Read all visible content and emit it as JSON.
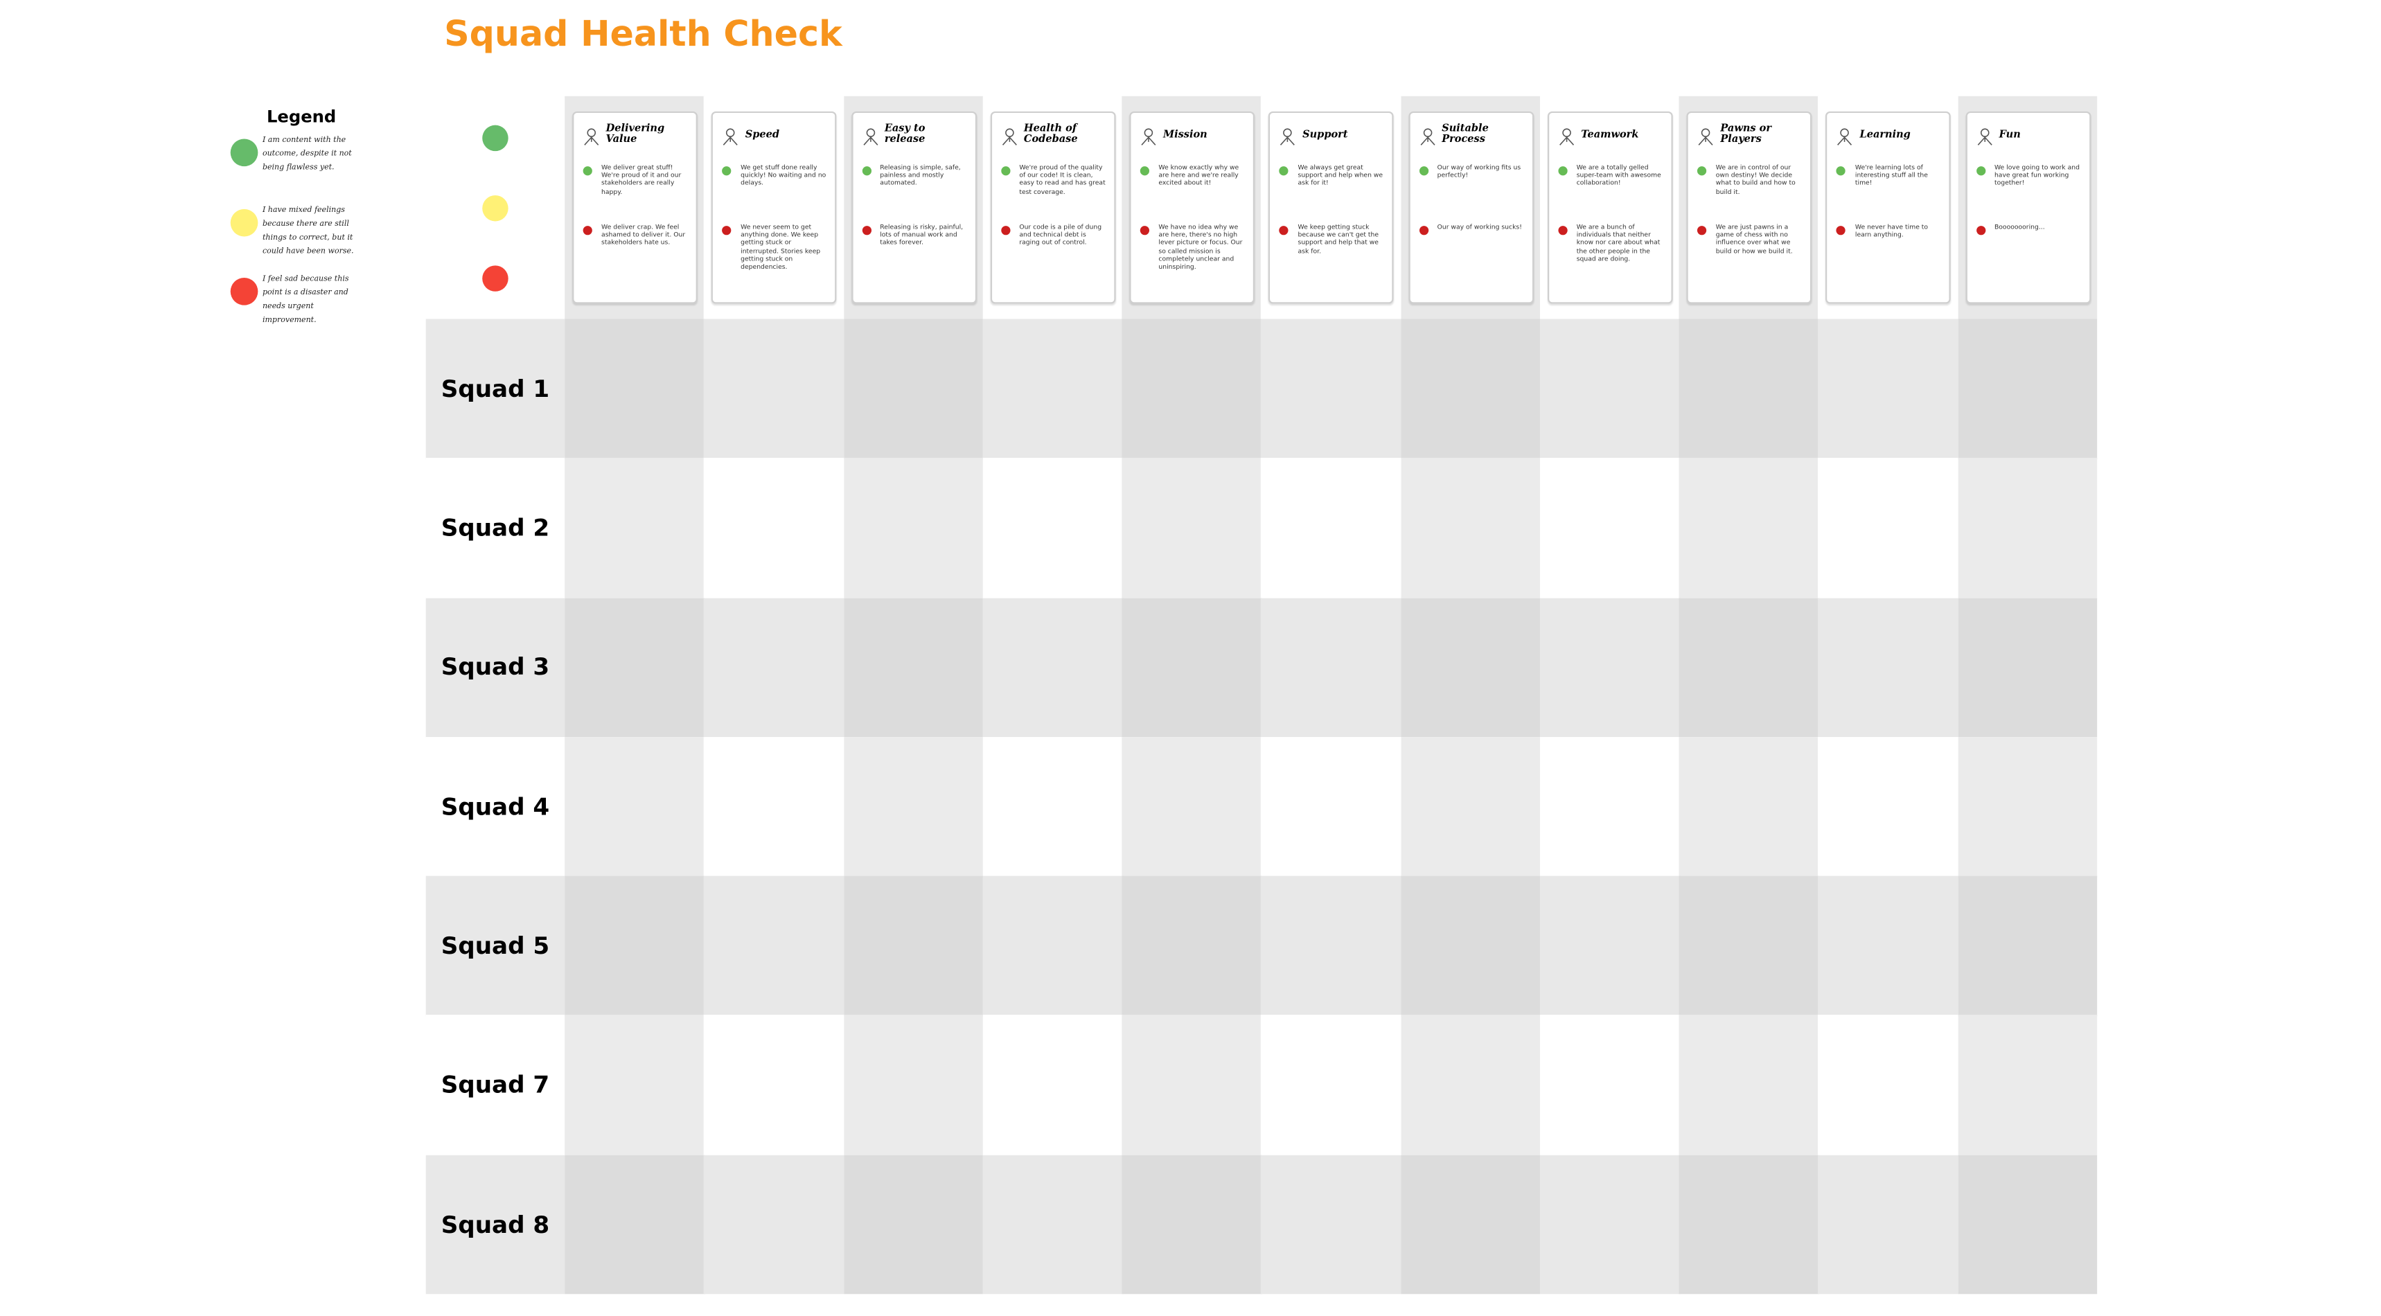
{
  "title": "Squad Health Check",
  "legend": {
    "title": "Legend",
    "items": [
      "I am content with the outcome, despite it not being flawless yet.",
      "I have mixed feelings because there are still things to correct, but it could have been worse.",
      "I feel sad because this point is a disaster and needs urgent improvement."
    ]
  },
  "criteria": [
    {
      "title": "Delivering Value",
      "good": "We deliver great stuff! We're proud of it and our stakeholders are really happy.",
      "bad": "We deliver crap. We feel ashamed to deliver it. Our stakeholders hate us."
    },
    {
      "title": "Speed",
      "good": "We get stuff done really quickly! No waiting and no delays.",
      "bad": "We never seem to get anything done. We keep getting stuck or interrupted. Stories keep getting stuck on dependencies."
    },
    {
      "title": "Easy to release",
      "good": "Releasing is simple, safe, painless and mostly automated.",
      "bad": "Releasing is risky, painful, lots of manual work and takes forever."
    },
    {
      "title": "Health of Codebase",
      "good": "We're proud of the quality of our code! It is clean, easy to read and has great test coverage.",
      "bad": "Our code is a pile of dung and technical debt is raging out of control."
    },
    {
      "title": "Mission",
      "good": "We know exactly why we are here and we're really excited about it!",
      "bad": "We have no idea why we are here, there's no high lever picture or focus. Our so called mission is completely unclear and uninspiring."
    },
    {
      "title": "Support",
      "good": "We always get great support and help when we ask for it!",
      "bad": "We keep getting stuck because we can't get the support and help that we ask for."
    },
    {
      "title": "Suitable Process",
      "good": "Our way of working fits us perfectly!",
      "bad": "Our way of working sucks!"
    },
    {
      "title": "Teamwork",
      "good": "We are a totally gelled super-team with awesome collaboration!",
      "bad": "We are a bunch of individuals that neither know nor care about what the other people in the squad are doing."
    },
    {
      "title": "Pawns or Players",
      "good": "We are in control of our own destiny! We decide what to build and how to build it.",
      "bad": "We are just pawns in a game of chess with no influence over what we build or how we build it."
    },
    {
      "title": "Learning",
      "good": "We're learning lots of interesting stuff all the time!",
      "bad": "We never have time to learn anything."
    },
    {
      "title": "Fun",
      "good": "We love going to work and have great fun working together!",
      "bad": "Boooooooring..."
    }
  ],
  "squads": [
    "Squad 1",
    "Squad 2",
    "Squad 3",
    "Squad 4",
    "Squad 5",
    "Squad 7",
    "Squad 8"
  ]
}
